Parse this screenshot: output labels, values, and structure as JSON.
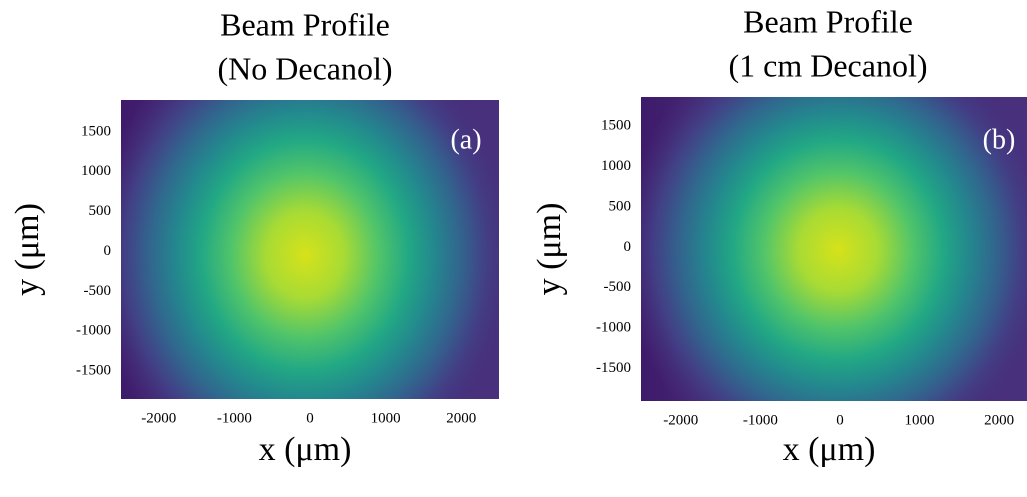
{
  "chart_data": [
    {
      "type": "heatmap",
      "title": [
        "Beam Profile",
        "(No Decanol)"
      ],
      "annotation": "(a)",
      "xlabel": "x (μm)",
      "ylabel": "y (μm)",
      "xlim": [
        -2500,
        2500
      ],
      "ylim": [
        -1850,
        1900
      ],
      "xticks": [
        -2000,
        -1000,
        0,
        1000,
        2000
      ],
      "yticks": [
        -1500,
        -1000,
        -500,
        0,
        500,
        1000,
        1500
      ]
    },
    {
      "type": "heatmap",
      "title": [
        "Beam Profile",
        "(1 cm Decanol)"
      ],
      "annotation": "(b)",
      "xlabel": "x (μm)",
      "ylabel": "y (μm)",
      "xlim": [
        -2500,
        2350
      ],
      "ylim": [
        -1900,
        1860
      ],
      "xticks": [
        -2000,
        -1000,
        0,
        1000,
        2000
      ],
      "yticks": [
        -1500,
        -1000,
        -500,
        0,
        500,
        1000,
        1500
      ]
    }
  ]
}
